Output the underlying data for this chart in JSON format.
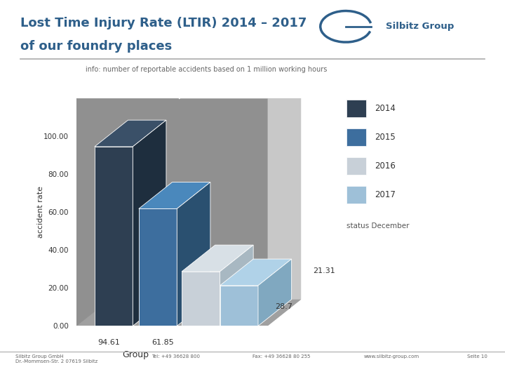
{
  "title_line1": "Lost Time Injury Rate (LTIR) 2014 – 2017",
  "title_line2": "of our foundry places",
  "subtitle": "info: number of reportable accidents based on 1 million working hours",
  "ylabel": "accident rate",
  "xlabel": "Group",
  "years": [
    "2014",
    "2015",
    "2016",
    "2017"
  ],
  "values": [
    94.61,
    61.85,
    28.7,
    21.31
  ],
  "bar_colors_front": [
    "#2e3f52",
    "#3d6e9e",
    "#c8d0d8",
    "#9ec0d8"
  ],
  "bar_colors_top": [
    "#3a5068",
    "#4a88bc",
    "#d8e0e6",
    "#b0d2e8"
  ],
  "bar_colors_side": [
    "#1e2e3e",
    "#2a5070",
    "#a8b8c2",
    "#80a8c0"
  ],
  "legend_colors": [
    "#2e3f52",
    "#3d6e9e",
    "#c8d0d8",
    "#9ec0d8"
  ],
  "status_text": "status December",
  "ylim_max": 120,
  "yticks": [
    0,
    20,
    40,
    60,
    80,
    100
  ],
  "ytick_labels": [
    "0.00",
    "20.00",
    "40.00",
    "60.00",
    "80.00",
    "100.00"
  ],
  "bg_dark": "#909090",
  "bg_light": "#c8c8c8",
  "bg_floor": "#a0a0a0",
  "background_color": "#ffffff",
  "title_color": "#2e5f8a",
  "footer_text_left": "Silbitz Group GmbH\nDr.-Mommsen-Str. 2 07619 Silbitz",
  "footer_text_center1": "Tel: +49 36628 800",
  "footer_text_center2": "Fax: +49 36628 80 255",
  "footer_text_right1": "www.silbitz-group.com",
  "footer_text_right2": "Seite 10"
}
